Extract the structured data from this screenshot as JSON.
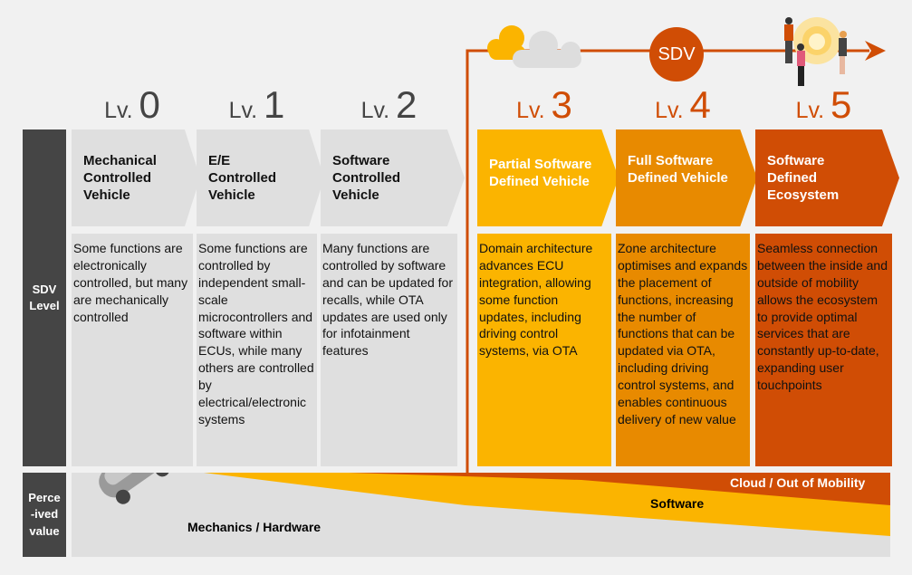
{
  "timeline": {
    "badge": "SDV",
    "arrow_color": "#d04d05"
  },
  "side_labels": {
    "sdv_level": "SDV Level",
    "perceived_value": "Perce\n-ived\nvalue"
  },
  "levels": [
    {
      "prefix": "Lv.",
      "num": "0",
      "title": "Mechanical Controlled Vehicle",
      "desc": "Some functions are electronically controlled, but many are mechanically controlled",
      "color": "#dfdfdf"
    },
    {
      "prefix": "Lv.",
      "num": "1",
      "title": "E/E Controlled Vehicle",
      "desc": "Some functions are controlled by independent small-scale microcontrollers and software within ECUs, while many others are controlled by electrical/electronic systems",
      "color": "#dfdfdf"
    },
    {
      "prefix": "Lv.",
      "num": "2",
      "title": "Software Controlled Vehicle",
      "desc": "Many functions are controlled by software and can be updated for recalls, while OTA updates are used only for infotainment features",
      "color": "#dfdfdf"
    },
    {
      "prefix": "Lv.",
      "num": "3",
      "title": "Partial Software Defined Vehicle",
      "desc": "Domain architecture advances ECU integration, allowing some function updates, including driving control systems, via OTA",
      "color": "#fbb400"
    },
    {
      "prefix": "Lv.",
      "num": "4",
      "title": "Full Software Defined Vehicle",
      "desc": "Zone architecture optimises and expands the placement of functions, increasing the number of  functions that can be updated via OTA, including driving control systems, and enables continuous delivery of new value",
      "color": "#e88a00"
    },
    {
      "prefix": "Lv.",
      "num": "5",
      "title": "Software Defined Ecosystem",
      "desc": "Seamless connection between the inside and outside of mobility allows the ecosystem to provide optimal services that are constantly up-to-date, expanding user touchpoints",
      "color": "#d04d05"
    }
  ],
  "value_layers": {
    "hardware": "Mechanics / Hardware",
    "software": "Software",
    "cloud": "Cloud / Out of Mobility"
  }
}
